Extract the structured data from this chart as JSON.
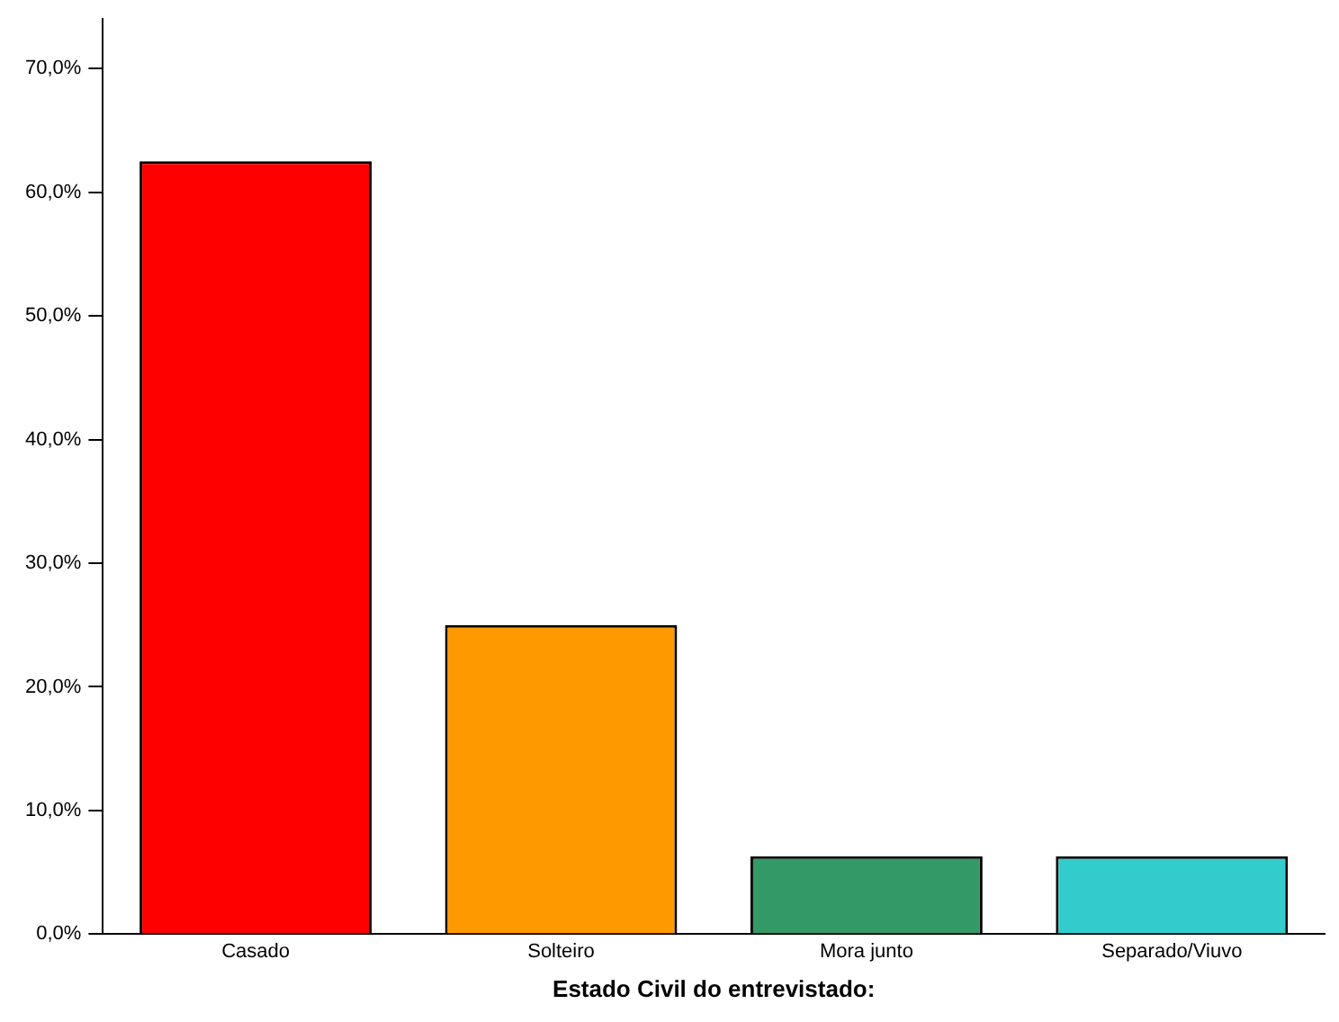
{
  "chart_data": {
    "type": "bar",
    "xlabel": "Estado Civil do entrevistado:",
    "categories": [
      "Casado",
      "Solteiro",
      "Mora junto",
      "Separado/Viuvo"
    ],
    "values": [
      62.5,
      25,
      6.3,
      6.3
    ],
    "colors": [
      "#ff0000",
      "#ff9900",
      "#339966",
      "#33cccc"
    ],
    "ylim": [
      0,
      74
    ],
    "yticks": [
      {
        "value": 0,
        "label": "0,0%"
      },
      {
        "value": 10,
        "label": "10,0%"
      },
      {
        "value": 20,
        "label": "20,0%"
      },
      {
        "value": 30,
        "label": "30,0%"
      },
      {
        "value": 40,
        "label": "40,0%"
      },
      {
        "value": 50,
        "label": "50,0%"
      },
      {
        "value": 60,
        "label": "60,0%"
      },
      {
        "value": 70,
        "label": "70,0%"
      }
    ],
    "grid": false,
    "legend": false
  }
}
